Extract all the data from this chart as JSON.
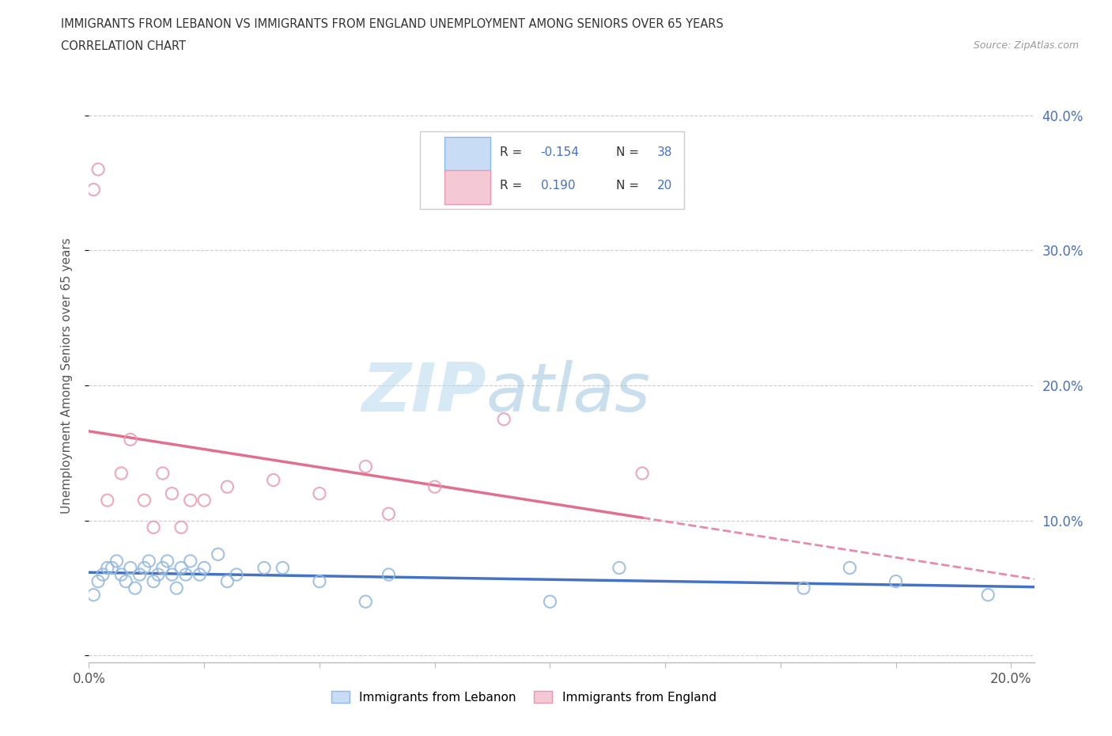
{
  "title_line1": "IMMIGRANTS FROM LEBANON VS IMMIGRANTS FROM ENGLAND UNEMPLOYMENT AMONG SENIORS OVER 65 YEARS",
  "title_line2": "CORRELATION CHART",
  "source": "Source: ZipAtlas.com",
  "ylabel": "Unemployment Among Seniors over 65 years",
  "xlim": [
    0.0,
    0.205
  ],
  "ylim": [
    -0.005,
    0.42
  ],
  "lebanon_color": "#92b8e0",
  "england_color": "#e89ab0",
  "lebanon_trend_color": "#4472c4",
  "england_trend_color": "#e07090",
  "lebanon_R": -0.154,
  "lebanon_N": 38,
  "england_R": 0.19,
  "england_N": 20,
  "lebanon_scatter_x": [
    0.001,
    0.002,
    0.003,
    0.004,
    0.005,
    0.006,
    0.007,
    0.008,
    0.009,
    0.01,
    0.011,
    0.012,
    0.013,
    0.014,
    0.015,
    0.016,
    0.017,
    0.018,
    0.019,
    0.02,
    0.021,
    0.022,
    0.024,
    0.025,
    0.028,
    0.03,
    0.032,
    0.038,
    0.042,
    0.05,
    0.06,
    0.065,
    0.1,
    0.115,
    0.155,
    0.165,
    0.175,
    0.195
  ],
  "lebanon_scatter_y": [
    0.045,
    0.055,
    0.06,
    0.065,
    0.065,
    0.07,
    0.06,
    0.055,
    0.065,
    0.05,
    0.06,
    0.065,
    0.07,
    0.055,
    0.06,
    0.065,
    0.07,
    0.06,
    0.05,
    0.065,
    0.06,
    0.07,
    0.06,
    0.065,
    0.075,
    0.055,
    0.06,
    0.065,
    0.065,
    0.055,
    0.04,
    0.06,
    0.04,
    0.065,
    0.05,
    0.065,
    0.055,
    0.045
  ],
  "england_scatter_x": [
    0.001,
    0.002,
    0.004,
    0.007,
    0.009,
    0.012,
    0.014,
    0.016,
    0.018,
    0.02,
    0.022,
    0.025,
    0.03,
    0.04,
    0.05,
    0.06,
    0.065,
    0.075,
    0.09,
    0.12
  ],
  "england_scatter_y": [
    0.345,
    0.36,
    0.115,
    0.135,
    0.16,
    0.115,
    0.095,
    0.135,
    0.12,
    0.095,
    0.115,
    0.115,
    0.125,
    0.13,
    0.12,
    0.14,
    0.105,
    0.125,
    0.175,
    0.135
  ],
  "watermark_zip": "ZIP",
  "watermark_atlas": "atlas",
  "background_color": "#ffffff",
  "grid_color": "#cccccc",
  "legend_text_color": "#333333",
  "legend_R_color": "#4472c4",
  "right_axis_color": "#4472c4"
}
